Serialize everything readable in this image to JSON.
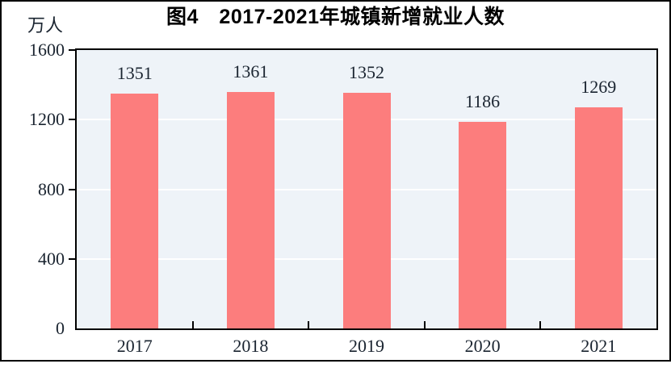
{
  "chart_data": {
    "type": "bar",
    "title": "图4　2017-2021年城镇新增就业人数",
    "unit_label": "万人",
    "categories": [
      "2017",
      "2018",
      "2019",
      "2020",
      "2021"
    ],
    "values": [
      1351,
      1361,
      1352,
      1186,
      1269
    ],
    "ylim": [
      0,
      1600
    ],
    "yticks": [
      0,
      400,
      800,
      1200,
      1600
    ],
    "xlabel": "",
    "ylabel": "万人",
    "legend_position": "none",
    "grid": "horizontal"
  },
  "colors": {
    "bar": "#FC7D7D",
    "plot_background": "#EEF3F8",
    "gridline": "#FFFFFF",
    "axis": "#000000",
    "label_text": "#1A2430",
    "title_text": "#000000",
    "frame": "#000000"
  }
}
